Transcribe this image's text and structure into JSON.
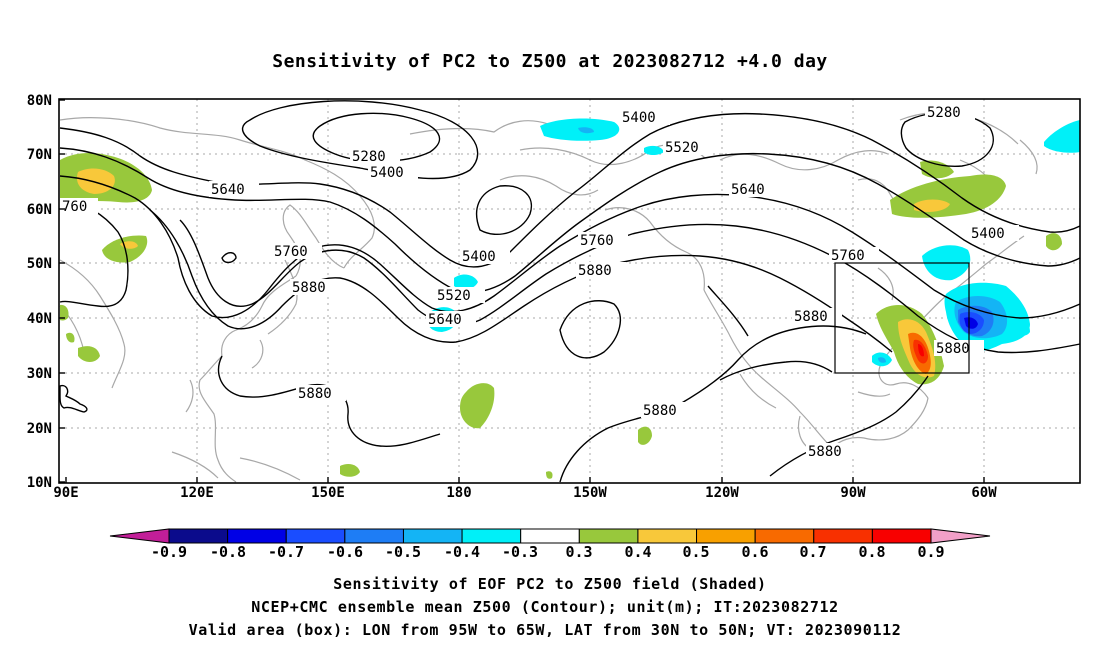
{
  "title": "Sensitivity of PC2 to Z500 at 2023082712 +4.0 day",
  "map": {
    "lon_labels": [
      "90E",
      "120E",
      "150E",
      "180",
      "150W",
      "120W",
      "90W",
      "60W"
    ],
    "lat_labels": [
      "80N",
      "70N",
      "60N",
      "50N",
      "40N",
      "30N",
      "20N",
      "10N"
    ],
    "contour_labels": {
      "c5280_a": "5280",
      "c5280_b": "5280",
      "c5400_a": "5400",
      "c5400_b": "5400",
      "c5400_c": "5400",
      "c5400_d": "5400",
      "c5520_a": "5520",
      "c5520_b": "5520",
      "c5640_a": "5640",
      "c5640_b": "5640",
      "c5640_c": "5640",
      "c5760_a": "5760",
      "c5760_b": "5760",
      "c5760_c": "5760",
      "c5760_edge": "760",
      "c5880_a": "5880",
      "c5880_b": "5880",
      "c5880_c": "5880",
      "c5880_d": "5880",
      "c5880_e": "5880",
      "c5880_f": "5880",
      "c5880_g": "5880"
    }
  },
  "colorbar": {
    "labels": [
      "-0.9",
      "-0.8",
      "-0.7",
      "-0.6",
      "-0.5",
      "-0.4",
      "-0.3",
      "0.3",
      "0.4",
      "0.5",
      "0.6",
      "0.7",
      "0.8",
      "0.9"
    ],
    "left_arrow_color": "#c21e98",
    "right_arrow_color": "#f2a0c8",
    "colors": [
      "#0b0b8c",
      "#0000e6",
      "#1a4dff",
      "#1e7df5",
      "#14b4f5",
      "#00f0f8",
      "#ffffff",
      "#98c83c",
      "#f8c83a",
      "#f8a000",
      "#f86a00",
      "#f83000",
      "#f80000"
    ]
  },
  "captions": {
    "line1": "Sensitivity of EOF PC2 to Z500 field (Shaded)",
    "line2": "NCEP+CMC ensemble mean Z500 (Contour); unit(m); IT:2023082712",
    "line3": "Valid area (box): LON from 95W to 65W, LAT from 30N to 50N; VT: 2023090112"
  }
}
